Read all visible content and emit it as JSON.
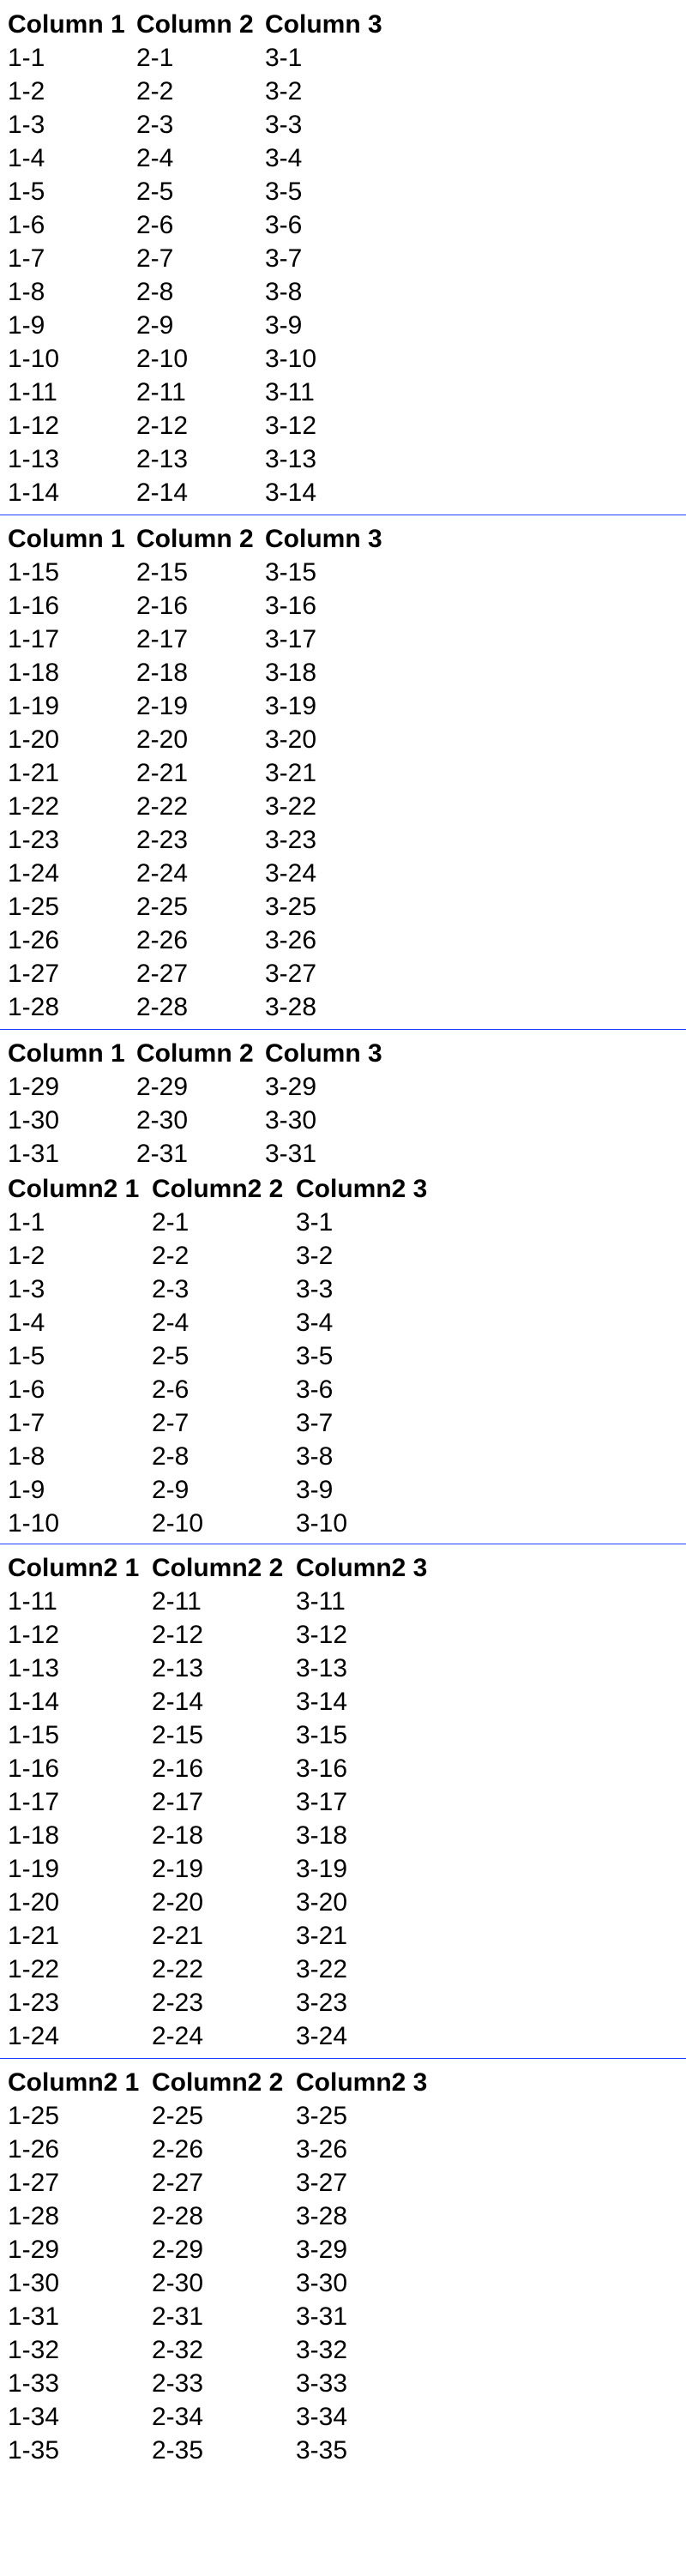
{
  "table1": {
    "headers": [
      "Column 1",
      "Column 2",
      "Column 3"
    ],
    "rows": [
      [
        "1-1",
        "2-1",
        "3-1"
      ],
      [
        "1-2",
        "2-2",
        "3-2"
      ],
      [
        "1-3",
        "2-3",
        "3-3"
      ],
      [
        "1-4",
        "2-4",
        "3-4"
      ],
      [
        "1-5",
        "2-5",
        "3-5"
      ],
      [
        "1-6",
        "2-6",
        "3-6"
      ],
      [
        "1-7",
        "2-7",
        "3-7"
      ],
      [
        "1-8",
        "2-8",
        "3-8"
      ],
      [
        "1-9",
        "2-9",
        "3-9"
      ],
      [
        "1-10",
        "2-10",
        "3-10"
      ],
      [
        "1-11",
        "2-11",
        "3-11"
      ],
      [
        "1-12",
        "2-12",
        "3-12"
      ],
      [
        "1-13",
        "2-13",
        "3-13"
      ],
      [
        "1-14",
        "2-14",
        "3-14"
      ],
      [
        "1-15",
        "2-15",
        "3-15"
      ],
      [
        "1-16",
        "2-16",
        "3-16"
      ],
      [
        "1-17",
        "2-17",
        "3-17"
      ],
      [
        "1-18",
        "2-18",
        "3-18"
      ],
      [
        "1-19",
        "2-19",
        "3-19"
      ],
      [
        "1-20",
        "2-20",
        "3-20"
      ],
      [
        "1-21",
        "2-21",
        "3-21"
      ],
      [
        "1-22",
        "2-22",
        "3-22"
      ],
      [
        "1-23",
        "2-23",
        "3-23"
      ],
      [
        "1-24",
        "2-24",
        "3-24"
      ],
      [
        "1-25",
        "2-25",
        "3-25"
      ],
      [
        "1-26",
        "2-26",
        "3-26"
      ],
      [
        "1-27",
        "2-27",
        "3-27"
      ],
      [
        "1-28",
        "2-28",
        "3-28"
      ],
      [
        "1-29",
        "2-29",
        "3-29"
      ],
      [
        "1-30",
        "2-30",
        "3-30"
      ],
      [
        "1-31",
        "2-31",
        "3-31"
      ]
    ]
  },
  "table2": {
    "headers": [
      "Column2 1",
      "Column2 2",
      "Column2 3"
    ],
    "rows": [
      [
        "1-1",
        "2-1",
        "3-1"
      ],
      [
        "1-2",
        "2-2",
        "3-2"
      ],
      [
        "1-3",
        "2-3",
        "3-3"
      ],
      [
        "1-4",
        "2-4",
        "3-4"
      ],
      [
        "1-5",
        "2-5",
        "3-5"
      ],
      [
        "1-6",
        "2-6",
        "3-6"
      ],
      [
        "1-7",
        "2-7",
        "3-7"
      ],
      [
        "1-8",
        "2-8",
        "3-8"
      ],
      [
        "1-9",
        "2-9",
        "3-9"
      ],
      [
        "1-10",
        "2-10",
        "3-10"
      ],
      [
        "1-11",
        "2-11",
        "3-11"
      ],
      [
        "1-12",
        "2-12",
        "3-12"
      ],
      [
        "1-13",
        "2-13",
        "3-13"
      ],
      [
        "1-14",
        "2-14",
        "3-14"
      ],
      [
        "1-15",
        "2-15",
        "3-15"
      ],
      [
        "1-16",
        "2-16",
        "3-16"
      ],
      [
        "1-17",
        "2-17",
        "3-17"
      ],
      [
        "1-18",
        "2-18",
        "3-18"
      ],
      [
        "1-19",
        "2-19",
        "3-19"
      ],
      [
        "1-20",
        "2-20",
        "3-20"
      ],
      [
        "1-21",
        "2-21",
        "3-21"
      ],
      [
        "1-22",
        "2-22",
        "3-22"
      ],
      [
        "1-23",
        "2-23",
        "3-23"
      ],
      [
        "1-24",
        "2-24",
        "3-24"
      ],
      [
        "1-25",
        "2-25",
        "3-25"
      ],
      [
        "1-26",
        "2-26",
        "3-26"
      ],
      [
        "1-27",
        "2-27",
        "3-27"
      ],
      [
        "1-28",
        "2-28",
        "3-28"
      ],
      [
        "1-29",
        "2-29",
        "3-29"
      ],
      [
        "1-30",
        "2-30",
        "3-30"
      ],
      [
        "1-31",
        "2-31",
        "3-31"
      ],
      [
        "1-32",
        "2-32",
        "3-32"
      ],
      [
        "1-33",
        "2-33",
        "3-33"
      ],
      [
        "1-34",
        "2-34",
        "3-34"
      ],
      [
        "1-35",
        "2-35",
        "3-35"
      ]
    ]
  }
}
